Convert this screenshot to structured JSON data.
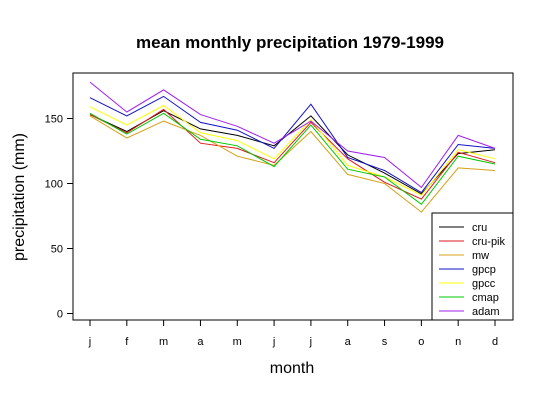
{
  "chart_data": {
    "type": "line",
    "title": "mean monthly precipitation 1979-1999",
    "xlabel": "month",
    "ylabel": "precipitation (mm)",
    "categories": [
      "j",
      "f",
      "m",
      "a",
      "m",
      "j",
      "j",
      "a",
      "s",
      "o",
      "n",
      "d"
    ],
    "ylim": [
      -5,
      185
    ],
    "yticks": [
      0,
      50,
      100,
      150
    ],
    "legend_position": "bottom-right",
    "series": [
      {
        "name": "cru",
        "color": "#000000",
        "values": [
          153,
          140,
          156,
          142,
          137,
          129,
          152,
          122,
          108,
          92,
          123,
          126
        ]
      },
      {
        "name": "cru-pik",
        "color": "#e31a1c",
        "values": [
          153,
          139,
          157,
          131,
          127,
          116,
          147,
          119,
          101,
          88,
          124,
          116
        ]
      },
      {
        "name": "mw",
        "color": "#d4a017",
        "values": [
          152,
          135,
          148,
          137,
          121,
          114,
          140,
          107,
          100,
          78,
          112,
          110
        ]
      },
      {
        "name": "gpcp",
        "color": "#1010c8",
        "values": [
          166,
          152,
          167,
          147,
          141,
          127,
          161,
          120,
          110,
          93,
          130,
          127
        ]
      },
      {
        "name": "gpcc",
        "color": "#ffff00",
        "values": [
          159,
          145,
          160,
          139,
          133,
          119,
          149,
          114,
          105,
          91,
          126,
          119
        ]
      },
      {
        "name": "cmap",
        "color": "#00c800",
        "values": [
          154,
          138,
          154,
          134,
          129,
          113,
          145,
          111,
          105,
          84,
          121,
          115
        ]
      },
      {
        "name": "adam",
        "color": "#a020f0",
        "values": [
          178,
          155,
          172,
          153,
          144,
          131,
          148,
          125,
          120,
          97,
          137,
          127
        ]
      }
    ]
  }
}
